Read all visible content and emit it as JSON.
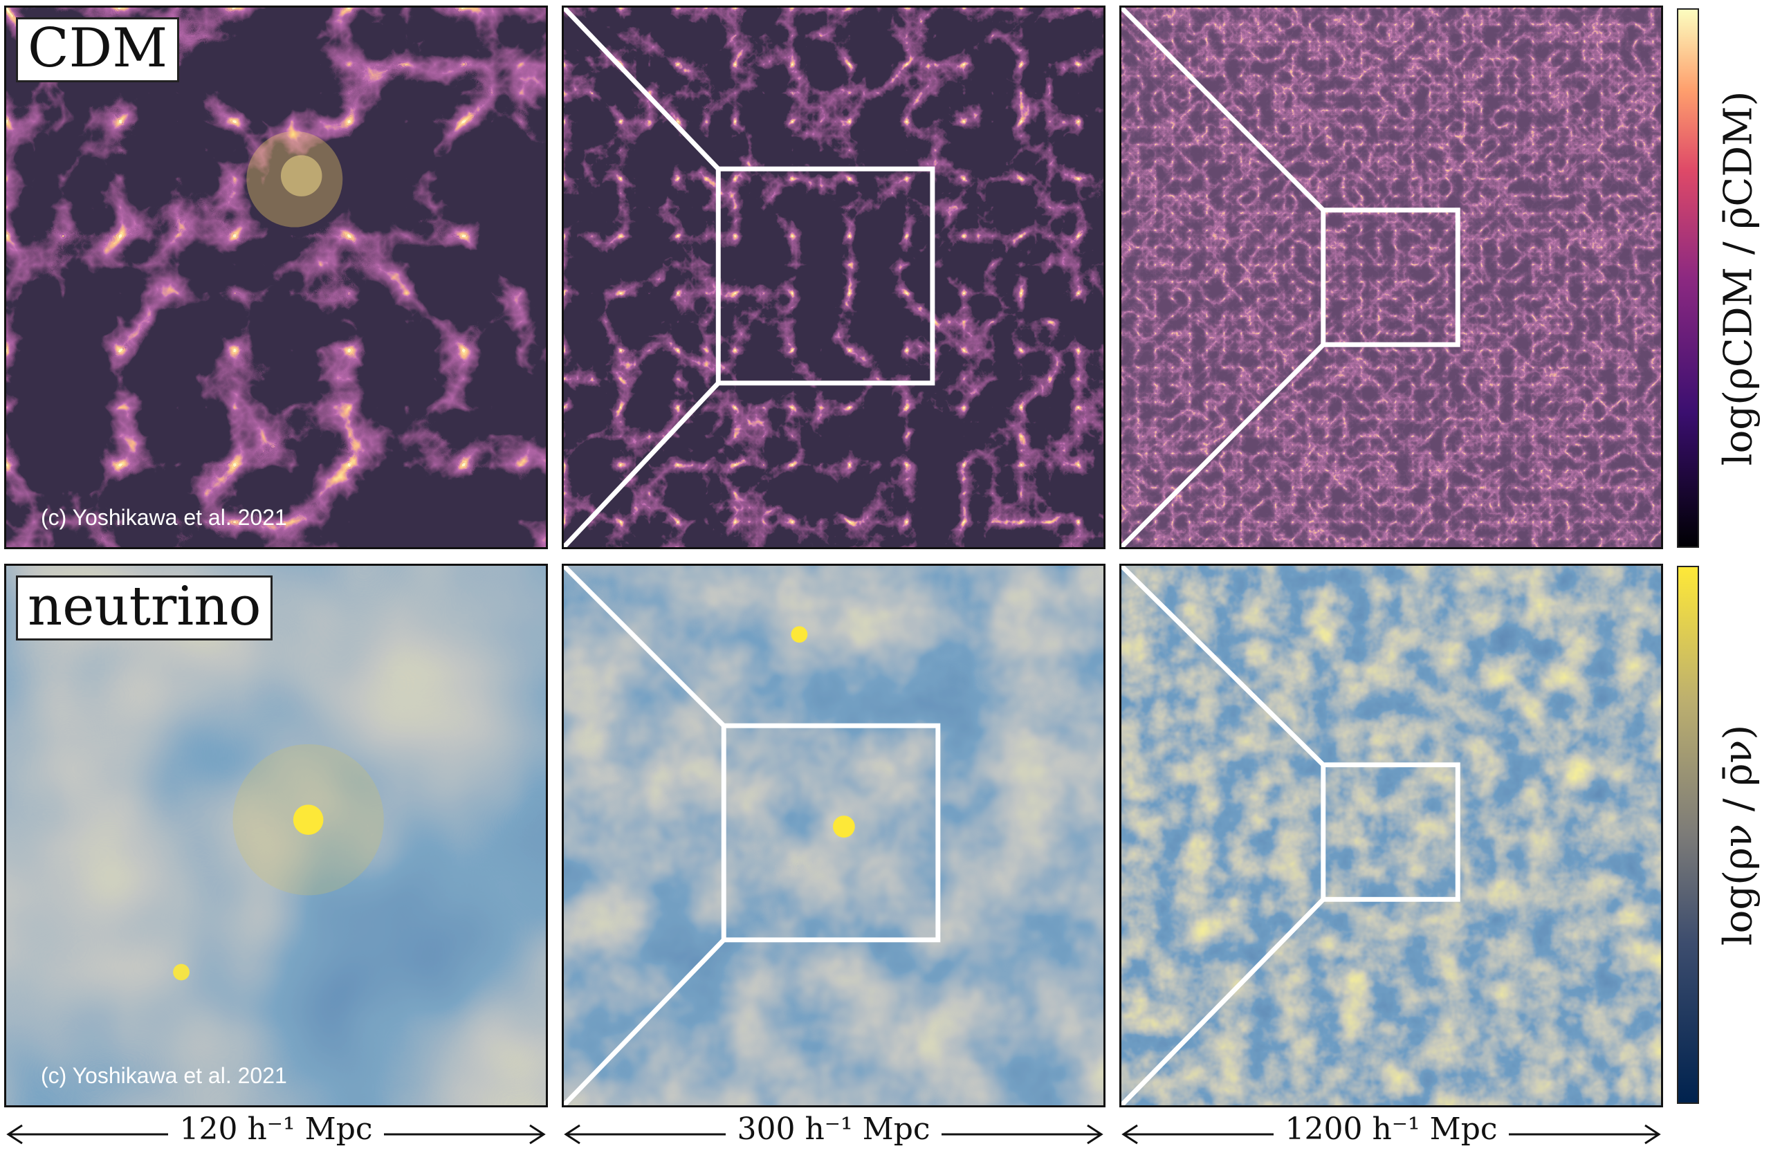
{
  "panels": {
    "cdm_label": "CDM",
    "neutrino_label": "neutrino",
    "credit": "(c) Yoshikawa et al. 2021"
  },
  "colorbars": {
    "cdm_label": "log(ρCDM / ρ̄CDM)",
    "neutrino_label": "log(ρν / ρ̄ν)"
  },
  "scales": [
    "120 h⁻¹ Mpc",
    "300 h⁻¹ Mpc",
    "1200 h⁻¹ Mpc"
  ],
  "colors": {
    "cdm_colormap": "inferno",
    "neutrino_colormap": "cividis",
    "cdm_low": "#0b0712",
    "cdm_mid": "#8b2a78",
    "cdm_high": "#fde890",
    "nu_low": "#1f3f73",
    "nu_mid": "#8f8f8f",
    "nu_high": "#fbe33a"
  }
}
